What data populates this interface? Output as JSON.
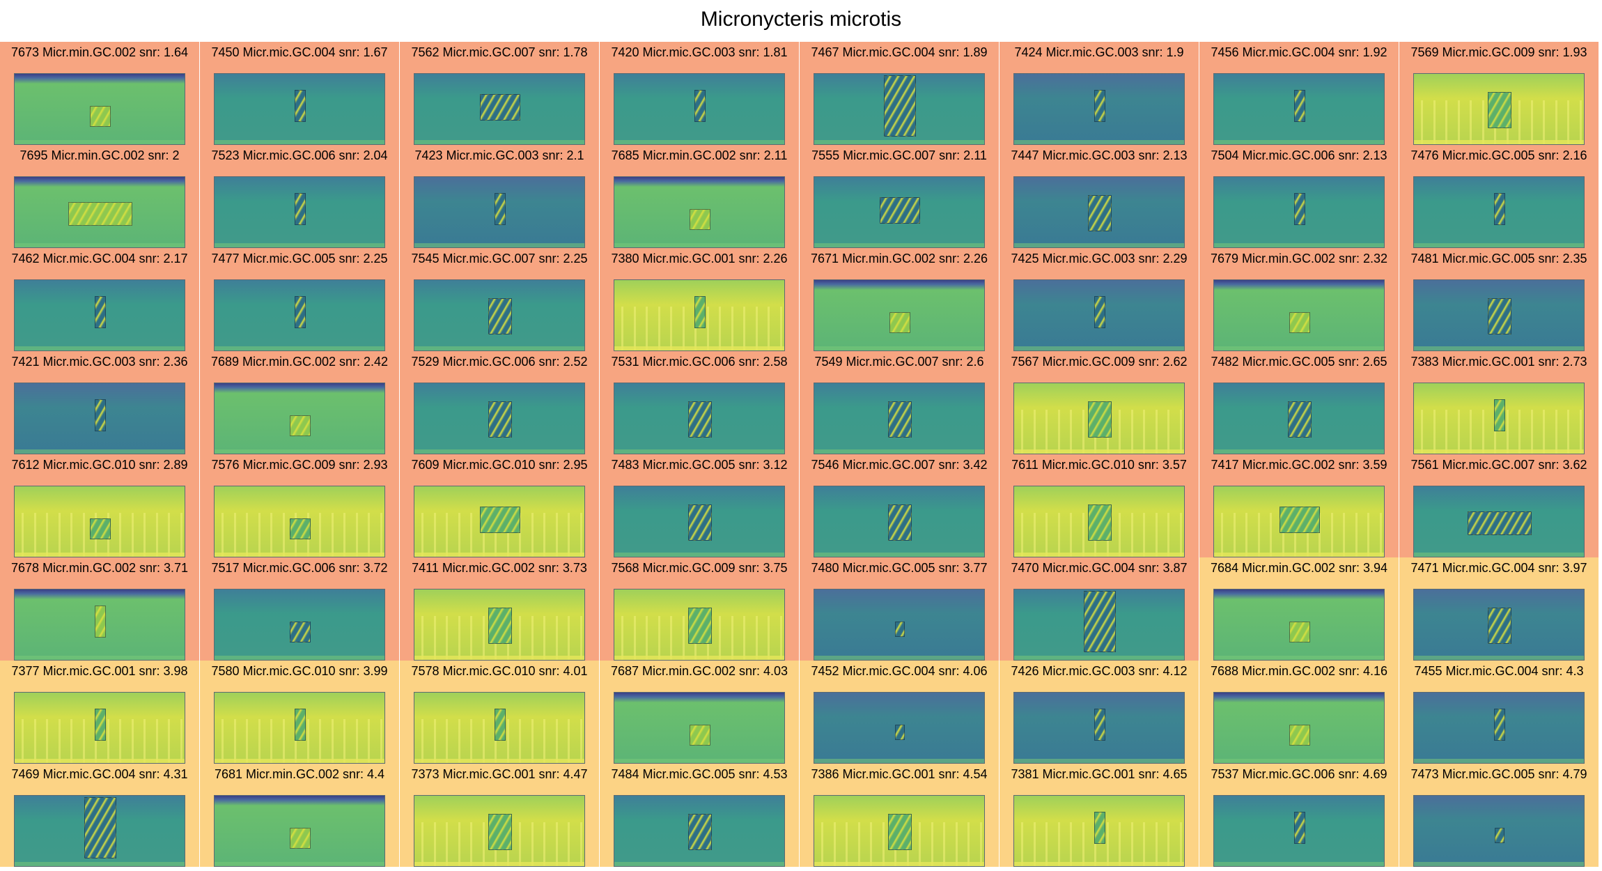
{
  "title": "Micronycteris microtis",
  "colors": {
    "cell_orange": "#f7a581",
    "cell_yellow": "#fcd385",
    "spec_dark_teal": "#3d7d8f",
    "spec_teal": "#3d988b",
    "spec_green": "#5fb873",
    "spec_yellow": "#c9db4d"
  },
  "cells": [
    {
      "label": "7673 Micr.min.GC.002 snr: 1.64",
      "bg": "orange",
      "spec": "green",
      "call": "small",
      "stripes": false,
      "band": true
    },
    {
      "label": "7450 Micr.mic.GC.004 snr: 1.67",
      "bg": "orange",
      "spec": "teal",
      "call": "narrow",
      "stripes": false,
      "band": false
    },
    {
      "label": "7562 Micr.mic.GC.007 snr: 1.78",
      "bg": "orange",
      "spec": "teal",
      "call": "wide",
      "stripes": false,
      "band": false
    },
    {
      "label": "7420 Micr.mic.GC.003 snr: 1.81",
      "bg": "orange",
      "spec": "teal",
      "call": "narrow",
      "stripes": false,
      "band": false
    },
    {
      "label": "7467 Micr.mic.GC.004 snr: 1.89",
      "bg": "orange",
      "spec": "teal",
      "call": "tall",
      "stripes": false,
      "band": false
    },
    {
      "label": "7424 Micr.mic.GC.003 snr: 1.9",
      "bg": "orange",
      "spec": "dark",
      "call": "narrow",
      "stripes": false,
      "band": false
    },
    {
      "label": "7456 Micr.mic.GC.004 snr: 1.92",
      "bg": "orange",
      "spec": "teal",
      "call": "narrow",
      "stripes": false,
      "band": false
    },
    {
      "label": "7569 Micr.mic.GC.009 snr: 1.93",
      "bg": "orange",
      "spec": "yellow",
      "call": "medium",
      "stripes": true,
      "band": false
    },
    {
      "label": "7695 Micr.min.GC.002 snr: 2",
      "bg": "orange",
      "spec": "green",
      "call": "longwide",
      "stripes": false,
      "band": true
    },
    {
      "label": "7523 Micr.mic.GC.006 snr: 2.04",
      "bg": "orange",
      "spec": "teal",
      "call": "narrow",
      "stripes": false,
      "band": false
    },
    {
      "label": "7423 Micr.mic.GC.003 snr: 2.1",
      "bg": "orange",
      "spec": "dark",
      "call": "narrow",
      "stripes": false,
      "band": false
    },
    {
      "label": "7685 Micr.min.GC.002 snr: 2.11",
      "bg": "orange",
      "spec": "green",
      "call": "small",
      "stripes": false,
      "band": true
    },
    {
      "label": "7555 Micr.mic.GC.007 snr: 2.11",
      "bg": "orange",
      "spec": "teal",
      "call": "wide",
      "stripes": false,
      "band": false
    },
    {
      "label": "7447 Micr.mic.GC.003 snr: 2.13",
      "bg": "orange",
      "spec": "dark",
      "call": "medium",
      "stripes": false,
      "band": false
    },
    {
      "label": "7504 Micr.mic.GC.006 snr: 2.13",
      "bg": "orange",
      "spec": "teal",
      "call": "narrow",
      "stripes": false,
      "band": false
    },
    {
      "label": "7476 Micr.mic.GC.005 snr: 2.16",
      "bg": "orange",
      "spec": "teal",
      "call": "narrow",
      "stripes": false,
      "band": false
    },
    {
      "label": "7462 Micr.mic.GC.004 snr: 2.17",
      "bg": "orange",
      "spec": "teal",
      "call": "narrow",
      "stripes": false,
      "band": false
    },
    {
      "label": "7477 Micr.mic.GC.005 snr: 2.25",
      "bg": "orange",
      "spec": "teal",
      "call": "narrow",
      "stripes": false,
      "band": false
    },
    {
      "label": "7545 Micr.mic.GC.007 snr: 2.25",
      "bg": "orange",
      "spec": "teal",
      "call": "medium",
      "stripes": false,
      "band": false
    },
    {
      "label": "7380 Micr.mic.GC.001 snr: 2.26",
      "bg": "orange",
      "spec": "yellow",
      "call": "narrow",
      "stripes": true,
      "band": false
    },
    {
      "label": "7671 Micr.min.GC.002 snr: 2.26",
      "bg": "orange",
      "spec": "green",
      "call": "small",
      "stripes": false,
      "band": true
    },
    {
      "label": "7425 Micr.mic.GC.003 snr: 2.29",
      "bg": "orange",
      "spec": "dark",
      "call": "narrow",
      "stripes": false,
      "band": false
    },
    {
      "label": "7679 Micr.min.GC.002 snr: 2.32",
      "bg": "orange",
      "spec": "green",
      "call": "small",
      "stripes": false,
      "band": true
    },
    {
      "label": "7481 Micr.mic.GC.005 snr: 2.35",
      "bg": "orange",
      "spec": "dark",
      "call": "medium",
      "stripes": false,
      "band": false
    },
    {
      "label": "7421 Micr.mic.GC.003 snr: 2.36",
      "bg": "orange",
      "spec": "dark",
      "call": "narrow",
      "stripes": false,
      "band": false
    },
    {
      "label": "7689 Micr.min.GC.002 snr: 2.42",
      "bg": "orange",
      "spec": "green",
      "call": "small",
      "stripes": false,
      "band": true
    },
    {
      "label": "7529 Micr.mic.GC.006 snr: 2.52",
      "bg": "orange",
      "spec": "teal",
      "call": "medium",
      "stripes": false,
      "band": false
    },
    {
      "label": "7531 Micr.mic.GC.006 snr: 2.58",
      "bg": "orange",
      "spec": "teal",
      "call": "medium",
      "stripes": false,
      "band": false
    },
    {
      "label": "7549 Micr.mic.GC.007 snr: 2.6",
      "bg": "orange",
      "spec": "teal",
      "call": "medium",
      "stripes": false,
      "band": false
    },
    {
      "label": "7567 Micr.mic.GC.009 snr: 2.62",
      "bg": "orange",
      "spec": "yellow",
      "call": "medium",
      "stripes": true,
      "band": false
    },
    {
      "label": "7482 Micr.mic.GC.005 snr: 2.65",
      "bg": "orange",
      "spec": "teal",
      "call": "medium",
      "stripes": false,
      "band": false
    },
    {
      "label": "7383 Micr.mic.GC.001 snr: 2.73",
      "bg": "orange",
      "spec": "yellow",
      "call": "narrow",
      "stripes": true,
      "band": false
    },
    {
      "label": "7612 Micr.mic.GC.010 snr: 2.89",
      "bg": "orange",
      "spec": "yellow",
      "call": "small",
      "stripes": true,
      "band": false
    },
    {
      "label": "7576 Micr.mic.GC.009 snr: 2.93",
      "bg": "orange",
      "spec": "yellow",
      "call": "small",
      "stripes": true,
      "band": false
    },
    {
      "label": "7609 Micr.mic.GC.010 snr: 2.95",
      "bg": "orange",
      "spec": "yellow",
      "call": "wide",
      "stripes": true,
      "band": false
    },
    {
      "label": "7483 Micr.mic.GC.005 snr: 3.12",
      "bg": "orange",
      "spec": "teal",
      "call": "medium",
      "stripes": false,
      "band": false
    },
    {
      "label": "7546 Micr.mic.GC.007 snr: 3.42",
      "bg": "orange",
      "spec": "teal",
      "call": "medium",
      "stripes": false,
      "band": false
    },
    {
      "label": "7611 Micr.mic.GC.010 snr: 3.57",
      "bg": "orange",
      "spec": "yellow",
      "call": "medium",
      "stripes": true,
      "band": false
    },
    {
      "label": "7417 Micr.mic.GC.002 snr: 3.59",
      "bg": "orange",
      "spec": "yellow",
      "call": "wide",
      "stripes": true,
      "band": false
    },
    {
      "label": "7561 Micr.mic.GC.007 snr: 3.62",
      "bg": "orange",
      "spec": "teal",
      "call": "longwide",
      "stripes": false,
      "band": false
    },
    {
      "label": "7678 Micr.min.GC.002 snr: 3.71",
      "bg": "orange",
      "spec": "green",
      "call": "narrow",
      "stripes": false,
      "band": true
    },
    {
      "label": "7517 Micr.mic.GC.006 snr: 3.72",
      "bg": "orange",
      "spec": "teal",
      "call": "small",
      "stripes": false,
      "band": false
    },
    {
      "label": "7411 Micr.mic.GC.002 snr: 3.73",
      "bg": "orange",
      "spec": "yellow",
      "call": "medium",
      "stripes": true,
      "band": false
    },
    {
      "label": "7568 Micr.mic.GC.009 snr: 3.75",
      "bg": "orange",
      "spec": "yellow",
      "call": "medium",
      "stripes": true,
      "band": false
    },
    {
      "label": "7480 Micr.mic.GC.005 snr: 3.77",
      "bg": "orange",
      "spec": "dark",
      "call": "tiny",
      "stripes": false,
      "band": false
    },
    {
      "label": "7470 Micr.mic.GC.004 snr: 3.87",
      "bg": "orange",
      "spec": "teal",
      "call": "tall",
      "stripes": false,
      "band": false
    },
    {
      "label": "7684 Micr.min.GC.002 snr: 3.94",
      "bg": "yellow",
      "spec": "green",
      "call": "small",
      "stripes": false,
      "band": true
    },
    {
      "label": "7471 Micr.mic.GC.004 snr: 3.97",
      "bg": "yellow",
      "spec": "dark",
      "call": "medium",
      "stripes": false,
      "band": false
    },
    {
      "label": "7377 Micr.mic.GC.001 snr: 3.98",
      "bg": "yellow",
      "spec": "yellow",
      "call": "narrow",
      "stripes": true,
      "band": false
    },
    {
      "label": "7580 Micr.mic.GC.010 snr: 3.99",
      "bg": "yellow",
      "spec": "yellow",
      "call": "narrow",
      "stripes": true,
      "band": false
    },
    {
      "label": "7578 Micr.mic.GC.010 snr: 4.01",
      "bg": "yellow",
      "spec": "yellow",
      "call": "narrow",
      "stripes": true,
      "band": false
    },
    {
      "label": "7687 Micr.min.GC.002 snr: 4.03",
      "bg": "yellow",
      "spec": "green",
      "call": "small",
      "stripes": false,
      "band": true
    },
    {
      "label": "7452 Micr.mic.GC.004 snr: 4.06",
      "bg": "yellow",
      "spec": "dark",
      "call": "tiny",
      "stripes": false,
      "band": false
    },
    {
      "label": "7426 Micr.mic.GC.003 snr: 4.12",
      "bg": "yellow",
      "spec": "dark",
      "call": "narrow",
      "stripes": false,
      "band": false
    },
    {
      "label": "7688 Micr.min.GC.002 snr: 4.16",
      "bg": "yellow",
      "spec": "green",
      "call": "small",
      "stripes": false,
      "band": true
    },
    {
      "label": "7455 Micr.mic.GC.004 snr: 4.3",
      "bg": "yellow",
      "spec": "dark",
      "call": "narrow",
      "stripes": false,
      "band": false
    },
    {
      "label": "7469 Micr.mic.GC.004 snr: 4.31",
      "bg": "yellow",
      "spec": "teal",
      "call": "tall",
      "stripes": false,
      "band": false
    },
    {
      "label": "7681 Micr.min.GC.002 snr: 4.4",
      "bg": "yellow",
      "spec": "green",
      "call": "small",
      "stripes": false,
      "band": true
    },
    {
      "label": "7373 Micr.mic.GC.001 snr: 4.47",
      "bg": "yellow",
      "spec": "yellow",
      "call": "medium",
      "stripes": true,
      "band": false
    },
    {
      "label": "7484 Micr.mic.GC.005 snr: 4.53",
      "bg": "yellow",
      "spec": "teal",
      "call": "medium",
      "stripes": false,
      "band": false
    },
    {
      "label": "7386 Micr.mic.GC.001 snr: 4.54",
      "bg": "yellow",
      "spec": "yellow",
      "call": "medium",
      "stripes": true,
      "band": false
    },
    {
      "label": "7381 Micr.mic.GC.001 snr: 4.65",
      "bg": "yellow",
      "spec": "yellow",
      "call": "narrow",
      "stripes": true,
      "band": false
    },
    {
      "label": "7537 Micr.mic.GC.006 snr: 4.69",
      "bg": "yellow",
      "spec": "teal",
      "call": "narrow",
      "stripes": false,
      "band": false
    },
    {
      "label": "7473 Micr.mic.GC.005 snr: 4.79",
      "bg": "yellow",
      "spec": "dark",
      "call": "tiny",
      "stripes": false,
      "band": false
    }
  ]
}
